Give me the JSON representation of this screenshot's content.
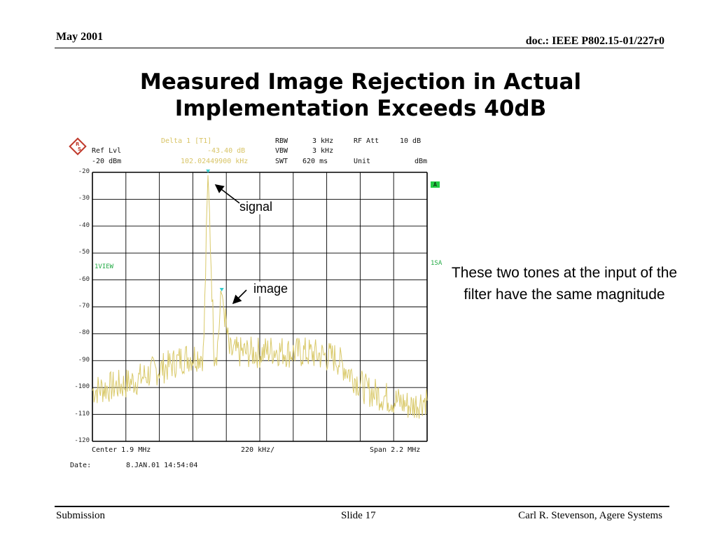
{
  "header": {
    "date": "May 2001",
    "doc": "doc.: IEEE P802.15-01/227r0"
  },
  "title": {
    "line1": "Measured Image Rejection in Actual",
    "line2": "Implementation Exceeds 40dB"
  },
  "description": "These two tones at the input of the filter have the same magnitude",
  "footer": {
    "left": "Submission",
    "center": "Slide 17",
    "right": "Carl R. Stevenson, Agere Systems"
  },
  "analyzer": {
    "ref_lvl_label": "Ref Lvl",
    "ref_lvl_value": "-20 dBm",
    "marker_title": "Delta 1 [T1]",
    "marker_level": "-43.40 dB",
    "marker_freq": "102.02449900 kHz",
    "rbw_label": "RBW",
    "rbw_value": "3 kHz",
    "rfatt_label": "RF Att",
    "rfatt_value": "10 dB",
    "vbw_label": "VBW",
    "vbw_value": "3 kHz",
    "swt_label": "SWT",
    "swt_value": "620 ms",
    "unit_label": "Unit",
    "unit_value": "dBm",
    "trace_label": "1VIEW",
    "side_label_a": "A",
    "side_label_1sa": "1SA",
    "center": "Center 1.9 MHz",
    "div": "220 kHz/",
    "span": "Span 2.2 MHz",
    "date_label": "Date:",
    "date_value": "8.JAN.01 14:54:04",
    "y_ticks": [
      "-20",
      "-30",
      "-40",
      "-50",
      "-60",
      "-70",
      "-80",
      "-90",
      "-100",
      "-110",
      "-120"
    ],
    "annotation_signal": "signal",
    "annotation_image": "image",
    "colors": {
      "trace": "#d9c96a",
      "marker": "#33cccc",
      "grid": "#000000",
      "label_bg": "#22cc44"
    }
  },
  "chart_data": {
    "type": "line",
    "x_axis": {
      "center": "1.9 MHz",
      "span": "2.2 MHz",
      "per_division": "220 kHz"
    },
    "ylim": [
      -120,
      -20
    ],
    "y_unit": "dBm",
    "grid": true,
    "series": [
      {
        "x": [
          0.8,
          0.9,
          1.0,
          1.1,
          1.2,
          1.3,
          1.4,
          1.5,
          1.53,
          1.56,
          1.6,
          1.62,
          1.65,
          1.7,
          1.8,
          1.9,
          2.0,
          2.1,
          2.2,
          2.3,
          2.4,
          2.5,
          2.6,
          2.7,
          2.8,
          2.9,
          3.0
        ],
        "y": [
          -101,
          -100,
          -99,
          -97,
          -94,
          -92,
          -89,
          -88,
          -88,
          -20,
          -87,
          -86,
          -64,
          -87,
          -87,
          -87,
          -86,
          -87,
          -87,
          -88,
          -89,
          -95,
          -101,
          -103,
          -105,
          -107,
          -104
        ]
      }
    ],
    "annotations": [
      {
        "text": "signal",
        "x": 1.56,
        "y": -20
      },
      {
        "text": "image",
        "x": 1.65,
        "y": -64
      }
    ]
  }
}
